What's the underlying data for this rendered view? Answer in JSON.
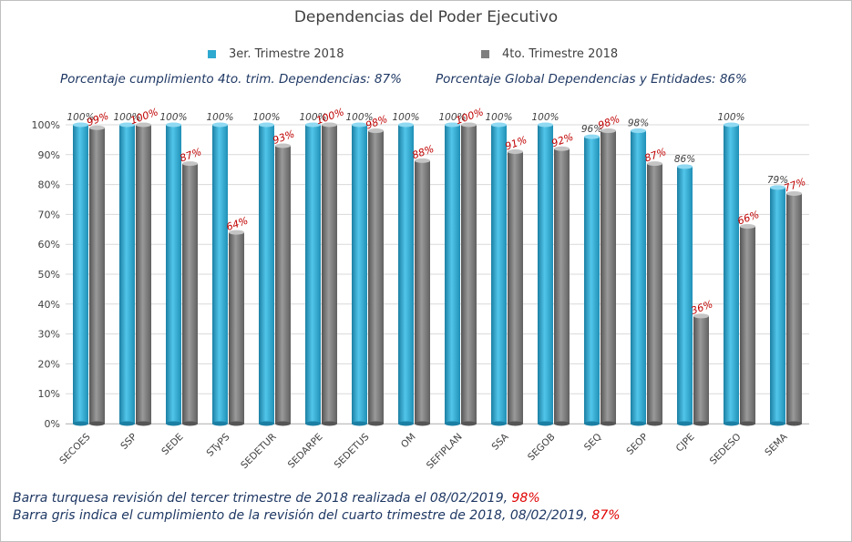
{
  "chart_data": {
    "type": "bar",
    "title": "Dependencias del Poder Ejecutivo",
    "categories": [
      "SECOES",
      "SSP",
      "SEDE",
      "STyPS",
      "SEDETUR",
      "SEDARPE",
      "SEDETUS",
      "OM",
      "SEFIPLAN",
      "SSA",
      "SEGOB",
      "SEQ",
      "SEOP",
      "CJPE",
      "SEDESO",
      "SEMA"
    ],
    "series": [
      {
        "name": "3er. Trimestre 2018",
        "color": "#2ea9d0",
        "values": [
          100,
          100,
          100,
          100,
          100,
          100,
          100,
          100,
          100,
          100,
          100,
          96,
          98,
          86,
          100,
          79
        ],
        "labels": [
          "100%",
          "100%",
          "100%",
          "100%",
          "100%",
          "100%",
          "100%",
          "100%",
          "100%",
          "100%",
          "100%",
          "96%",
          "98%",
          "86%",
          "100%",
          "79%"
        ]
      },
      {
        "name": "4to. Trimestre 2018",
        "color": "#7f7f7f",
        "values": [
          99,
          100,
          87,
          64,
          93,
          100,
          98,
          88,
          100,
          91,
          92,
          98,
          87,
          36,
          66,
          77
        ],
        "labels": [
          "99%",
          "100%",
          "87%",
          "64%",
          "93%",
          "100%",
          "98%",
          "88%",
          "100%",
          "91%",
          "92%",
          "98%",
          "87%",
          "36%",
          "66%",
          "77%"
        ]
      }
    ],
    "ylim": [
      0,
      100
    ],
    "yticks": [
      "0%",
      "10%",
      "20%",
      "30%",
      "40%",
      "50%",
      "60%",
      "70%",
      "80%",
      "90%",
      "100%"
    ],
    "grid": true,
    "legend": "top-center"
  },
  "summary": {
    "left": "Porcentaje cumplimiento 4to. trim. Dependencias: 87%",
    "right": "Porcentaje Global Dependencias y Entidades: 86%"
  },
  "notes": {
    "line1_text": "Barra turquesa revisión del tercer trimestre de 2018 realizada el 08/02/2019, ",
    "line1_value": "98%",
    "line2_text": "Barra gris indica el cumplimiento de la revisión del cuarto trimestre de 2018, 08/02/2019, ",
    "line2_value": "87%"
  },
  "colors": {
    "turquoise": "#2ea9d0",
    "gray": "#7f7f7f",
    "label_red": "#c00000",
    "text_blue": "#1f3864"
  }
}
